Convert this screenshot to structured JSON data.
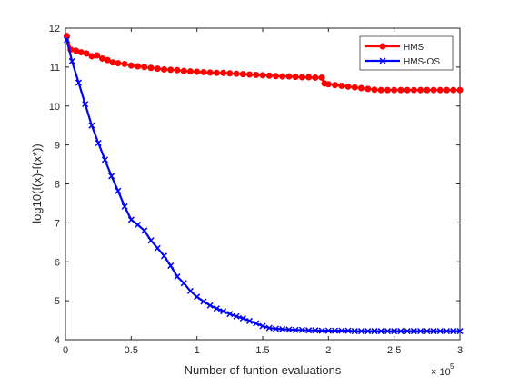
{
  "chart_data": {
    "type": "line",
    "xlabel": "Number of funtion evaluations",
    "ylabel": "log10(f(x)-f(x*))",
    "x_multiplier_base": "× 10",
    "x_multiplier_exp": "5",
    "xlim": [
      0,
      3
    ],
    "ylim": [
      4,
      12
    ],
    "xticks": [
      0,
      0.5,
      1,
      1.5,
      2,
      2.5,
      3
    ],
    "xtick_labels": [
      "0",
      "0.5",
      "1",
      "1.5",
      "2",
      "2.5",
      "3"
    ],
    "yticks": [
      4,
      5,
      6,
      7,
      8,
      9,
      10,
      11,
      12
    ],
    "ytick_labels": [
      "4",
      "5",
      "6",
      "7",
      "8",
      "9",
      "10",
      "11",
      "12"
    ],
    "grid": false,
    "legend_position": "top-right",
    "series": [
      {
        "name": "HMS",
        "color": "#ff0000",
        "marker": "circle",
        "points": [
          [
            0.01,
            11.8
          ],
          [
            0.04,
            11.45
          ],
          [
            0.08,
            11.42
          ],
          [
            0.12,
            11.38
          ],
          [
            0.16,
            11.35
          ],
          [
            0.2,
            11.28
          ],
          [
            0.24,
            11.3
          ],
          [
            0.28,
            11.22
          ],
          [
            0.32,
            11.18
          ],
          [
            0.36,
            11.12
          ],
          [
            0.4,
            11.1
          ],
          [
            0.45,
            11.08
          ],
          [
            0.5,
            11.04
          ],
          [
            0.55,
            11.02
          ],
          [
            0.6,
            11.0
          ],
          [
            0.65,
            10.98
          ],
          [
            0.7,
            10.96
          ],
          [
            0.75,
            10.94
          ],
          [
            0.8,
            10.93
          ],
          [
            0.85,
            10.92
          ],
          [
            0.9,
            10.9
          ],
          [
            0.95,
            10.89
          ],
          [
            1.0,
            10.88
          ],
          [
            1.05,
            10.87
          ],
          [
            1.1,
            10.86
          ],
          [
            1.15,
            10.85
          ],
          [
            1.2,
            10.85
          ],
          [
            1.25,
            10.84
          ],
          [
            1.3,
            10.83
          ],
          [
            1.35,
            10.82
          ],
          [
            1.4,
            10.81
          ],
          [
            1.45,
            10.8
          ],
          [
            1.5,
            10.79
          ],
          [
            1.55,
            10.78
          ],
          [
            1.6,
            10.77
          ],
          [
            1.65,
            10.76
          ],
          [
            1.7,
            10.76
          ],
          [
            1.75,
            10.75
          ],
          [
            1.8,
            10.74
          ],
          [
            1.85,
            10.74
          ],
          [
            1.9,
            10.73
          ],
          [
            1.95,
            10.73
          ],
          [
            1.97,
            10.58
          ],
          [
            2.0,
            10.56
          ],
          [
            2.05,
            10.54
          ],
          [
            2.1,
            10.52
          ],
          [
            2.15,
            10.5
          ],
          [
            2.2,
            10.48
          ],
          [
            2.25,
            10.46
          ],
          [
            2.3,
            10.44
          ],
          [
            2.35,
            10.42
          ],
          [
            2.4,
            10.41
          ],
          [
            2.45,
            10.41
          ],
          [
            2.5,
            10.41
          ],
          [
            2.55,
            10.41
          ],
          [
            2.6,
            10.41
          ],
          [
            2.65,
            10.41
          ],
          [
            2.7,
            10.41
          ],
          [
            2.75,
            10.41
          ],
          [
            2.8,
            10.41
          ],
          [
            2.85,
            10.41
          ],
          [
            2.9,
            10.41
          ],
          [
            2.95,
            10.41
          ],
          [
            3.0,
            10.41
          ]
        ]
      },
      {
        "name": "HMS-OS",
        "color": "#0000ff",
        "marker": "x",
        "points": [
          [
            0.01,
            11.7
          ],
          [
            0.05,
            11.15
          ],
          [
            0.1,
            10.6
          ],
          [
            0.15,
            10.05
          ],
          [
            0.2,
            9.5
          ],
          [
            0.25,
            9.05
          ],
          [
            0.3,
            8.62
          ],
          [
            0.35,
            8.2
          ],
          [
            0.4,
            7.82
          ],
          [
            0.45,
            7.42
          ],
          [
            0.5,
            7.08
          ],
          [
            0.55,
            6.95
          ],
          [
            0.6,
            6.8
          ],
          [
            0.65,
            6.55
          ],
          [
            0.7,
            6.35
          ],
          [
            0.75,
            6.15
          ],
          [
            0.8,
            5.9
          ],
          [
            0.85,
            5.62
          ],
          [
            0.9,
            5.45
          ],
          [
            0.95,
            5.25
          ],
          [
            1.0,
            5.1
          ],
          [
            1.05,
            4.98
          ],
          [
            1.1,
            4.88
          ],
          [
            1.15,
            4.8
          ],
          [
            1.2,
            4.73
          ],
          [
            1.25,
            4.66
          ],
          [
            1.3,
            4.6
          ],
          [
            1.35,
            4.55
          ],
          [
            1.4,
            4.48
          ],
          [
            1.45,
            4.42
          ],
          [
            1.5,
            4.35
          ],
          [
            1.55,
            4.3
          ],
          [
            1.6,
            4.28
          ],
          [
            1.65,
            4.27
          ],
          [
            1.7,
            4.26
          ],
          [
            1.75,
            4.25
          ],
          [
            1.8,
            4.25
          ],
          [
            1.85,
            4.24
          ],
          [
            1.9,
            4.24
          ],
          [
            1.95,
            4.23
          ],
          [
            2.0,
            4.23
          ],
          [
            2.05,
            4.23
          ],
          [
            2.1,
            4.23
          ],
          [
            2.15,
            4.23
          ],
          [
            2.2,
            4.22
          ],
          [
            2.25,
            4.22
          ],
          [
            2.3,
            4.22
          ],
          [
            2.35,
            4.22
          ],
          [
            2.4,
            4.22
          ],
          [
            2.45,
            4.22
          ],
          [
            2.5,
            4.22
          ],
          [
            2.55,
            4.22
          ],
          [
            2.6,
            4.22
          ],
          [
            2.65,
            4.22
          ],
          [
            2.7,
            4.22
          ],
          [
            2.75,
            4.22
          ],
          [
            2.8,
            4.22
          ],
          [
            2.85,
            4.22
          ],
          [
            2.9,
            4.22
          ],
          [
            2.95,
            4.22
          ],
          [
            3.0,
            4.22
          ]
        ]
      }
    ]
  }
}
